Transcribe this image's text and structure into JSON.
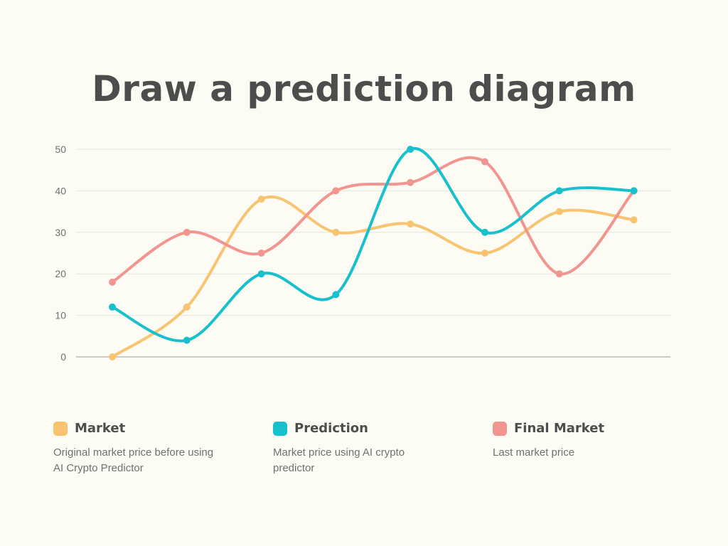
{
  "title": "Draw a prediction diagram",
  "chart_data": {
    "type": "line",
    "title": "Draw a prediction diagram",
    "xlabel": "",
    "ylabel": "",
    "ylim": [
      0,
      50
    ],
    "yticks": [
      0,
      10,
      20,
      30,
      40,
      50
    ],
    "grid": true,
    "smooth": true,
    "legend_position": "bottom",
    "series": [
      {
        "name": "Market",
        "color": "#f8c471",
        "description": "Original market price before using AI Crypto Predictor",
        "values": [
          0,
          12,
          38,
          30,
          32,
          25,
          35,
          33
        ]
      },
      {
        "name": "Prediction",
        "color": "#17c0cc",
        "description": "Market price using AI crypto predictor",
        "values": [
          12,
          4,
          20,
          15,
          50,
          30,
          40,
          40
        ]
      },
      {
        "name": "Final Market",
        "color": "#f29591",
        "description": "Last market price",
        "values": [
          18,
          30,
          25,
          40,
          42,
          47,
          20,
          40
        ]
      }
    ]
  },
  "legend": [
    {
      "name": "Market",
      "desc_line1": "Original market price before using",
      "desc_line2": "AI Crypto Predictor",
      "color": "#f8c471"
    },
    {
      "name": "Prediction",
      "desc_line1": "Market price using AI crypto",
      "desc_line2": "predictor",
      "color": "#17c0cc"
    },
    {
      "name": "Final Market",
      "desc_line1": "Last market price",
      "desc_line2": "",
      "color": "#f29591"
    }
  ]
}
